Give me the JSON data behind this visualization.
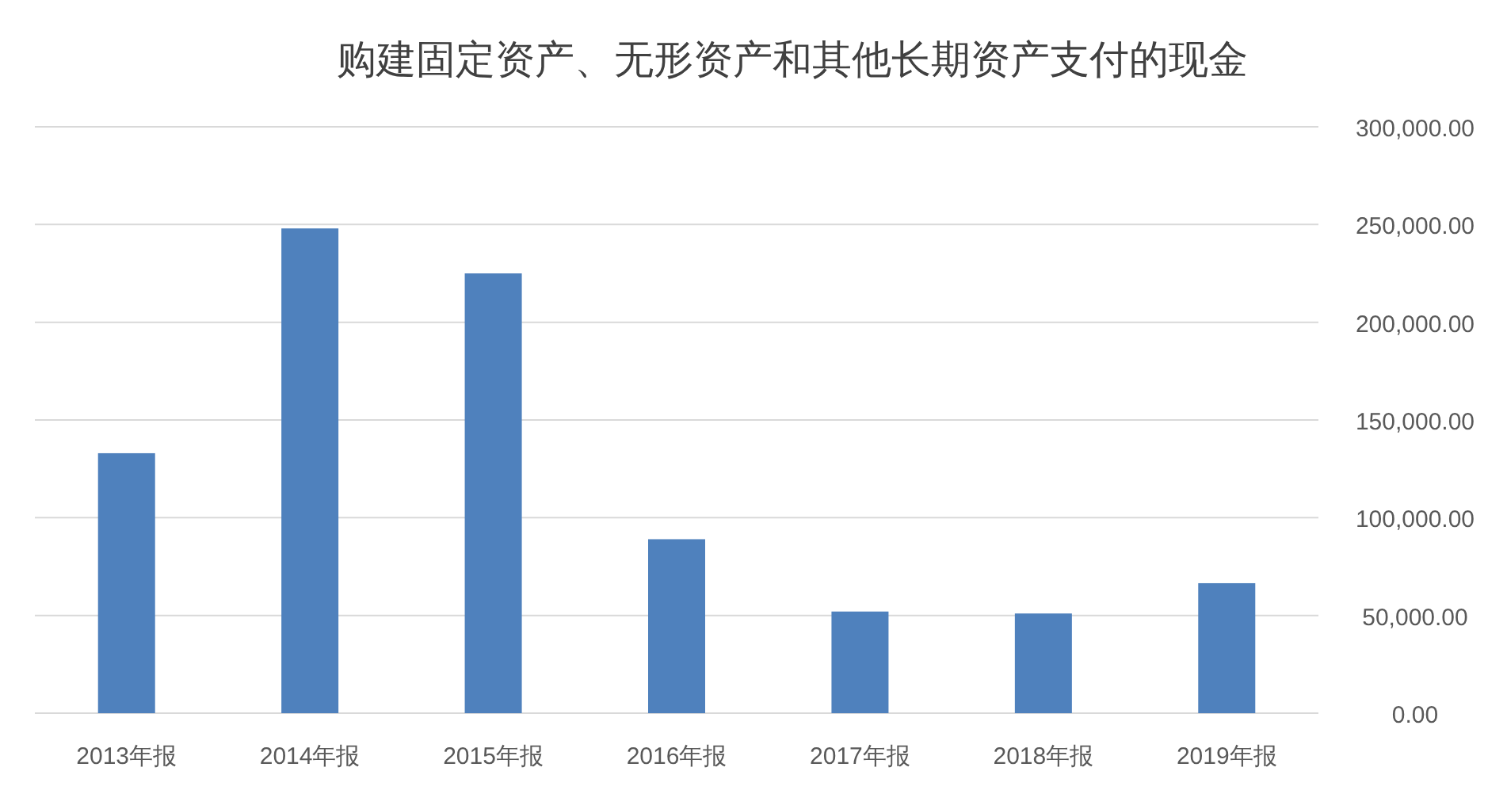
{
  "chart_data": {
    "type": "bar",
    "title": "购建固定资产、无形资产和其他长期资产支付的现金",
    "categories": [
      "2013年报",
      "2014年报",
      "2015年报",
      "2016年报",
      "2017年报",
      "2018年报",
      "2019年报"
    ],
    "values": [
      133000,
      248000,
      225000,
      89000,
      52000,
      51000,
      66500
    ],
    "color": "#4f81bd",
    "ylim": [
      0,
      300000
    ],
    "yticks": [
      {
        "value": 0,
        "label": "0.00"
      },
      {
        "value": 50000,
        "label": "50,000.00"
      },
      {
        "value": 100000,
        "label": "100,000.00"
      },
      {
        "value": 150000,
        "label": "150,000.00"
      },
      {
        "value": 200000,
        "label": "200,000.00"
      },
      {
        "value": 250000,
        "label": "250,000.00"
      },
      {
        "value": 300000,
        "label": "300,000.00"
      }
    ],
    "grid": "y"
  }
}
